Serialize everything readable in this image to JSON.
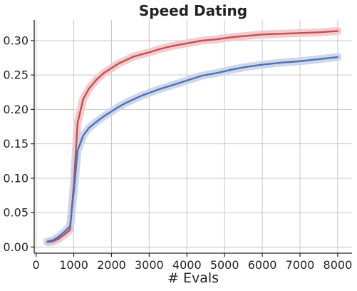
{
  "chart_data": {
    "type": "line",
    "title": "Speed Dating",
    "xlabel": "# Evals",
    "ylabel": "",
    "xlim": [
      -50,
      8380
    ],
    "ylim": [
      -0.009,
      0.33
    ],
    "x_ticks": [
      0,
      1000,
      2000,
      3000,
      4000,
      5000,
      6000,
      7000,
      8000
    ],
    "x_tick_labels": [
      "0",
      "1000",
      "2000",
      "3000",
      "4000",
      "5000",
      "6000",
      "7000",
      "8000"
    ],
    "y_ticks": [
      0.0,
      0.05,
      0.1,
      0.15,
      0.2,
      0.25,
      0.3
    ],
    "y_tick_labels": [
      "0.00",
      "0.05",
      "0.10",
      "0.15",
      "0.20",
      "0.25",
      "0.30"
    ],
    "grid": true,
    "legend": "none",
    "series": [
      {
        "color": "#c44e52",
        "band_color": "#f1c6c8",
        "x": [
          300,
          450,
          600,
          750,
          900,
          1000,
          1100,
          1250,
          1400,
          1600,
          1800,
          2000,
          2200,
          2400,
          2600,
          2800,
          3000,
          3300,
          3600,
          4000,
          4400,
          4800,
          5200,
          5600,
          6000,
          6500,
          7000,
          7500,
          8000
        ],
        "y": [
          0.007,
          0.008,
          0.012,
          0.018,
          0.025,
          0.09,
          0.18,
          0.215,
          0.23,
          0.243,
          0.253,
          0.26,
          0.267,
          0.272,
          0.277,
          0.28,
          0.283,
          0.288,
          0.292,
          0.296,
          0.3,
          0.302,
          0.305,
          0.307,
          0.309,
          0.31,
          0.311,
          0.312,
          0.314
        ]
      },
      {
        "color": "#4c72b0",
        "band_color": "#c9d3ea",
        "x": [
          300,
          450,
          600,
          750,
          900,
          1000,
          1100,
          1250,
          1400,
          1600,
          1800,
          2000,
          2200,
          2400,
          2600,
          2800,
          3000,
          3300,
          3600,
          4000,
          4400,
          4800,
          5200,
          5600,
          6000,
          6500,
          7000,
          7500,
          8000
        ],
        "y": [
          0.008,
          0.01,
          0.015,
          0.022,
          0.03,
          0.08,
          0.14,
          0.162,
          0.173,
          0.182,
          0.19,
          0.197,
          0.204,
          0.21,
          0.215,
          0.22,
          0.224,
          0.23,
          0.235,
          0.242,
          0.249,
          0.253,
          0.258,
          0.262,
          0.265,
          0.268,
          0.27,
          0.273,
          0.276
        ]
      }
    ]
  }
}
